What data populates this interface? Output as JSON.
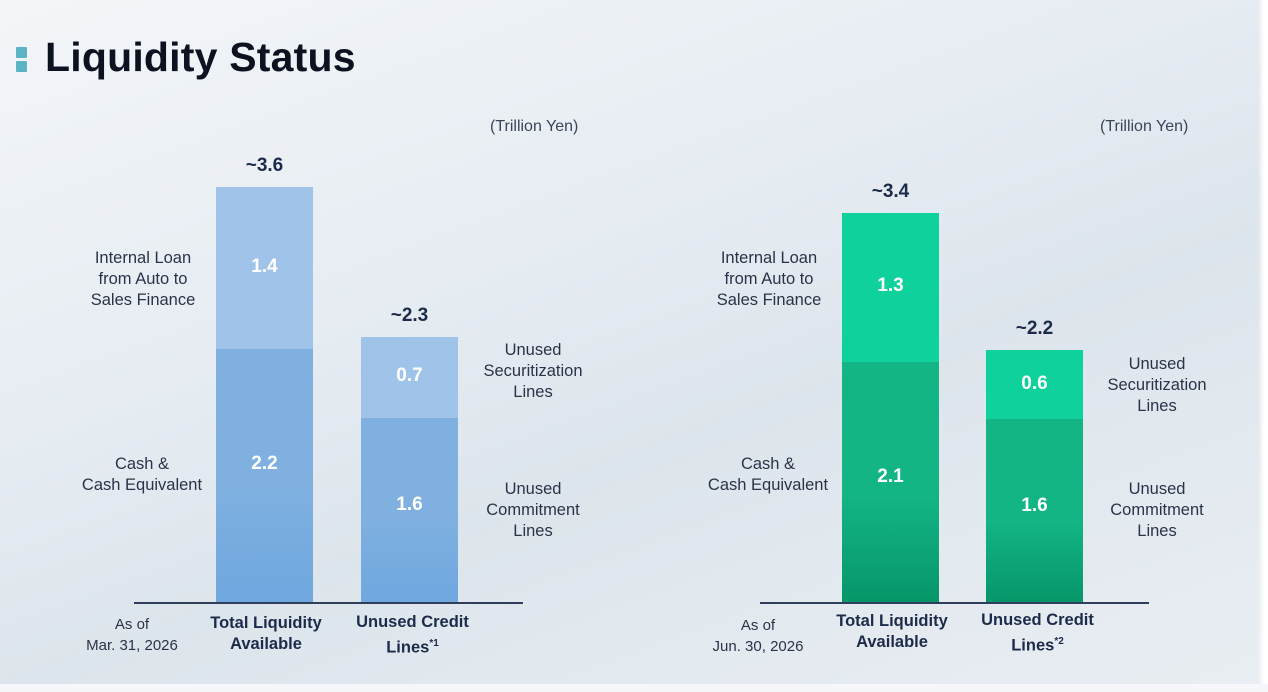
{
  "title": "Liquidity Status",
  "chart_data": [
    {
      "type": "bar",
      "stacked": true,
      "unit": "(Trillion Yen)",
      "as_of": "As of\nMar. 31, 2026",
      "categories": [
        "Total Liquidity\nAvailable",
        "Unused Credit\nLines*1"
      ],
      "category_label_parts": [
        [
          "Total Liquidity\nAvailable",
          ""
        ],
        [
          "Unused Credit\nLines",
          "*1"
        ]
      ],
      "totals": [
        "~3.6",
        "~2.3"
      ],
      "total_values": [
        3.6,
        2.3
      ],
      "series": [
        {
          "name": "Cash & Cash Equivalent / Unused Commitment Lines",
          "values": [
            2.2,
            1.6
          ],
          "labels": [
            "2.2",
            "1.6"
          ]
        },
        {
          "name": "Internal Loan from Auto to Sales Finance / Unused Securitization Lines",
          "values": [
            1.4,
            0.7
          ],
          "labels": [
            "1.4",
            "0.7"
          ]
        }
      ],
      "segment_labels": {
        "left_top": "Internal Loan\nfrom Auto to\nSales Finance",
        "left_bottom": "Cash &\nCash Equivalent",
        "right_top": "Unused\nSecuritization\nLines",
        "right_bottom": "Unused\nCommitment\nLines"
      },
      "colors": {
        "bottom": "#7fb0e0",
        "top": "#a0c4e9"
      }
    },
    {
      "type": "bar",
      "stacked": true,
      "unit": "(Trillion Yen)",
      "as_of": "As of\nJun. 30, 2026",
      "categories": [
        "Total Liquidity\nAvailable",
        "Unused Credit\nLines*2"
      ],
      "category_label_parts": [
        [
          "Total Liquidity\nAvailable",
          ""
        ],
        [
          "Unused Credit\nLines",
          "*2"
        ]
      ],
      "totals": [
        "~3.4",
        "~2.2"
      ],
      "total_values": [
        3.4,
        2.2
      ],
      "series": [
        {
          "name": "Cash & Cash Equivalent / Unused Commitment Lines",
          "values": [
            2.1,
            1.6
          ],
          "labels": [
            "2.1",
            "1.6"
          ]
        },
        {
          "name": "Internal Loan from Auto to Sales Finance / Unused Securitization Lines",
          "values": [
            1.3,
            0.6
          ],
          "labels": [
            "1.3",
            "0.6"
          ]
        }
      ],
      "segment_labels": {
        "left_top": "Internal Loan\nfrom Auto to\nSales Finance",
        "left_bottom": "Cash &\nCash Equivalent",
        "right_top": "Unused\nSecuritization\nLines",
        "right_bottom": "Unused\nCommitment\nLines"
      },
      "colors": {
        "bottom": "#14b585",
        "top": "#0fd19c"
      }
    }
  ]
}
